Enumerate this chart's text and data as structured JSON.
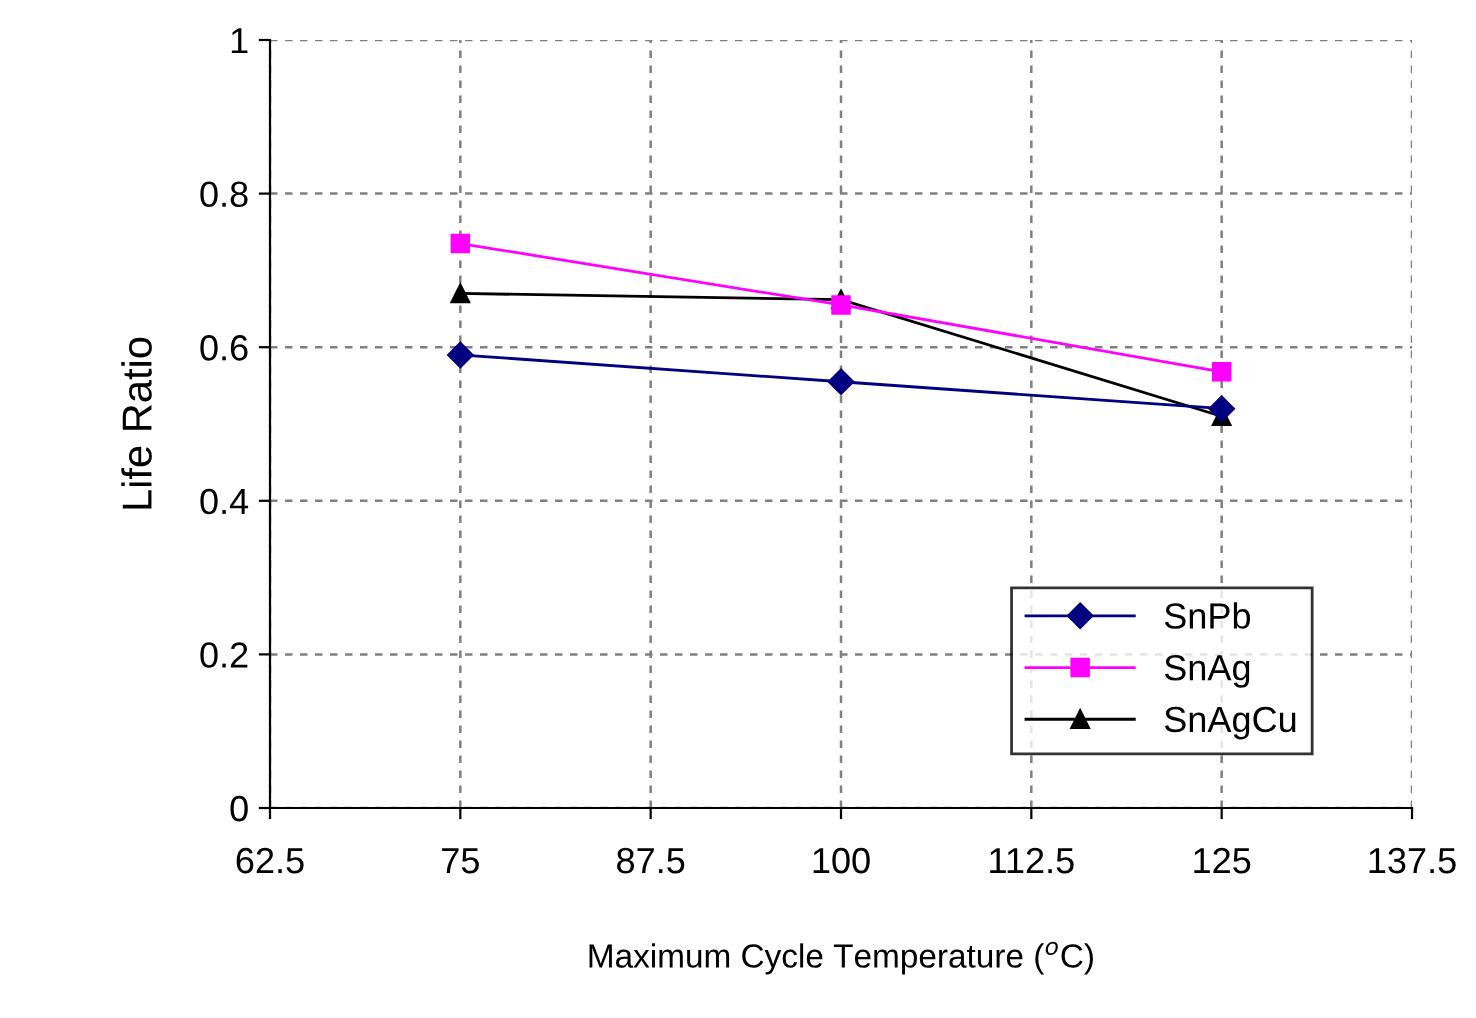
{
  "chart_data": {
    "type": "line",
    "xlabel": "Maximum Cycle Temperature ($^{o}$C)",
    "ylabel": "Life Ratio",
    "x": [
      75,
      100,
      125
    ],
    "series": [
      {
        "name": "SnPb",
        "color": "#000080",
        "marker": "diamond",
        "values": [
          0.59,
          0.555,
          0.52
        ]
      },
      {
        "name": "SnAg",
        "color": "#ff00ff",
        "marker": "square",
        "values": [
          0.735,
          0.655,
          0.568
        ]
      },
      {
        "name": "SnAgCu",
        "color": "#000000",
        "marker": "triangle",
        "values": [
          0.67,
          0.662,
          0.51
        ]
      }
    ],
    "xlim": [
      62.5,
      137.5
    ],
    "xticks": [
      62.5,
      75,
      87.5,
      100,
      112.5,
      125,
      137.5
    ],
    "ylim": [
      0,
      1
    ],
    "yticks": [
      0,
      0.2,
      0.4,
      0.6,
      0.8,
      1
    ],
    "grid": true,
    "legend": "bottom right",
    "line_style": "solid"
  }
}
